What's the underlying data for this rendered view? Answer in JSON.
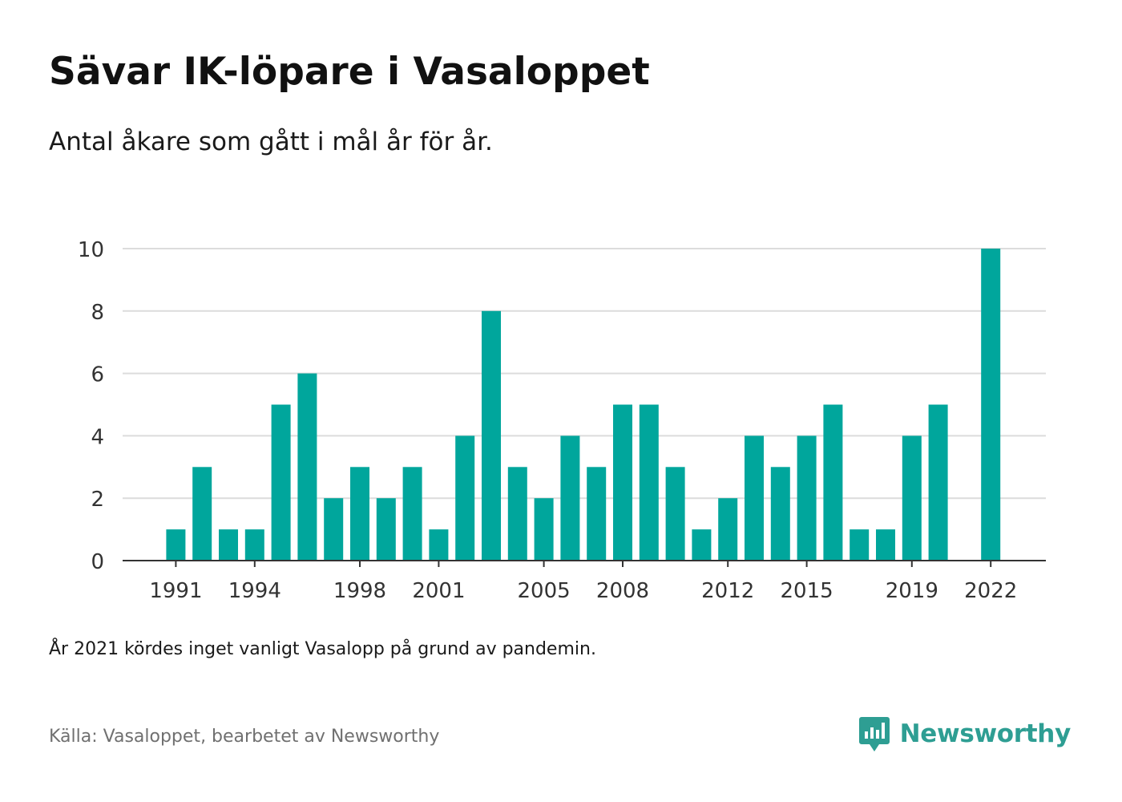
{
  "title": "Sävar IK-löpare i Vasaloppet",
  "subtitle": "Antal åkare som gått i mål år för år.",
  "note": "År 2021 kördes inget vanligt Vasalopp på grund av pandemin.",
  "source": "Källa: Vasaloppet, bearbetet av Newsworthy",
  "brand": {
    "name": "Newsworthy",
    "icon": "newsworthy-bar-chart-logo-icon",
    "color": "#2e9e93"
  },
  "chart_data": {
    "type": "bar",
    "bar_color": "#00a69c",
    "categories": [
      "1991",
      "1992",
      "1993",
      "1994",
      "1995",
      "1996",
      "1997",
      "1998",
      "1999",
      "2000",
      "2001",
      "2002",
      "2003",
      "2004",
      "2005",
      "2006",
      "2007",
      "2008",
      "2009",
      "2010",
      "2011",
      "2012",
      "2013",
      "2014",
      "2015",
      "2016",
      "2017",
      "2018",
      "2019",
      "2020",
      "2021",
      "2022"
    ],
    "values": [
      1,
      3,
      1,
      1,
      5,
      6,
      2,
      3,
      2,
      3,
      1,
      4,
      8,
      3,
      2,
      4,
      3,
      5,
      5,
      3,
      1,
      2,
      4,
      3,
      4,
      5,
      1,
      1,
      4,
      5,
      null,
      10
    ],
    "x_tick_labels": [
      "1991",
      "1994",
      "1998",
      "2001",
      "2005",
      "2008",
      "2012",
      "2015",
      "2019",
      "2022"
    ],
    "y_ticks": [
      0,
      2,
      4,
      6,
      8,
      10
    ],
    "ylim": [
      0,
      10
    ],
    "grid": true,
    "legend": "none",
    "xlabel": "",
    "ylabel": ""
  }
}
